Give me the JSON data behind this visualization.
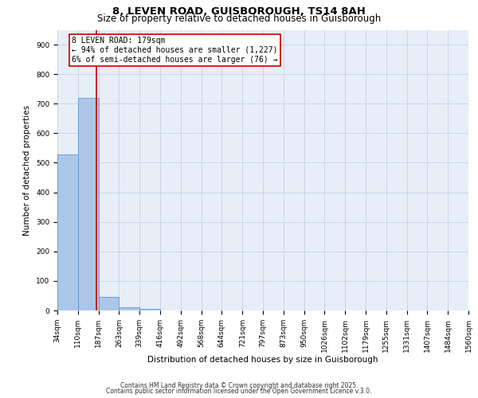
{
  "title_line1": "8, LEVEN ROAD, GUISBOROUGH, TS14 8AH",
  "title_line2": "Size of property relative to detached houses in Guisborough",
  "xlabel": "Distribution of detached houses by size in Guisborough",
  "ylabel": "Number of detached properties",
  "bin_edges": [
    34,
    110,
    187,
    263,
    339,
    416,
    492,
    568,
    644,
    721,
    797,
    873,
    950,
    1026,
    1102,
    1179,
    1255,
    1331,
    1407,
    1484,
    1560
  ],
  "bin_labels": [
    "34sqm",
    "110sqm",
    "187sqm",
    "263sqm",
    "339sqm",
    "416sqm",
    "492sqm",
    "568sqm",
    "644sqm",
    "721sqm",
    "797sqm",
    "873sqm",
    "950sqm",
    "1026sqm",
    "1102sqm",
    "1179sqm",
    "1255sqm",
    "1331sqm",
    "1407sqm",
    "1484sqm",
    "1560sqm"
  ],
  "bar_heights": [
    527,
    720,
    47,
    10,
    6,
    0,
    0,
    0,
    0,
    0,
    0,
    0,
    0,
    0,
    0,
    0,
    0,
    0,
    0,
    0
  ],
  "bar_color": "#adc6e8",
  "bar_edge_color": "#5a9bd5",
  "property_line_x": 179,
  "property_line_color": "#cc0000",
  "annotation_text": "8 LEVEN ROAD: 179sqm\n← 94% of detached houses are smaller (1,227)\n6% of semi-detached houses are larger (76) →",
  "annotation_box_color": "#cc0000",
  "annotation_bg": "#ffffff",
  "ylim": [
    0,
    950
  ],
  "yticks": [
    0,
    100,
    200,
    300,
    400,
    500,
    600,
    700,
    800,
    900
  ],
  "grid_color": "#c8d4e8",
  "bg_color": "#e8eef8",
  "footer_line1": "Contains HM Land Registry data © Crown copyright and database right 2025.",
  "footer_line2": "Contains public sector information licensed under the Open Government Licence v.3.0.",
  "title_fontsize": 9.5,
  "subtitle_fontsize": 8.5,
  "axis_label_fontsize": 7.5,
  "tick_fontsize": 6.5,
  "annotation_fontsize": 7,
  "footer_fontsize": 5.5
}
